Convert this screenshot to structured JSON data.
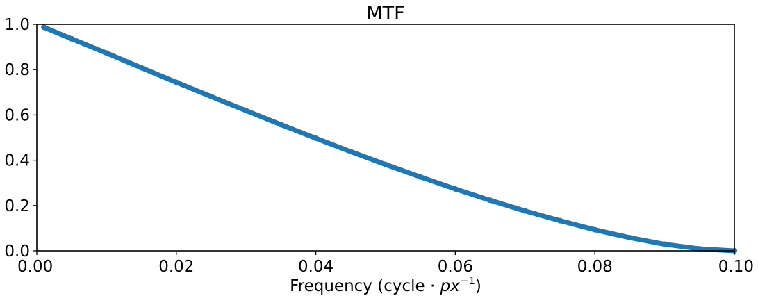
{
  "chart_data": {
    "type": "scatter",
    "title": "MTF",
    "xlabel": {
      "prefix": "Frequency (cycle · ",
      "italic": "px",
      "superscript": "−1",
      "suffix": ")"
    },
    "ylabel": "",
    "xlim": [
      0.0,
      0.1
    ],
    "ylim": [
      0.0,
      1.0
    ],
    "x_ticks": [
      0.0,
      0.02,
      0.04,
      0.06,
      0.08,
      0.1
    ],
    "x_tick_labels": [
      "0.00",
      "0.02",
      "0.04",
      "0.06",
      "0.08",
      "0.10"
    ],
    "y_ticks": [
      0.0,
      0.2,
      0.4,
      0.6,
      0.8,
      1.0
    ],
    "y_tick_labels": [
      "0.0",
      "0.2",
      "0.4",
      "0.6",
      "0.8",
      "1.0"
    ],
    "grid": false,
    "legend": "none",
    "series": [
      {
        "color": "#1f77b4",
        "x": [
          0.001,
          0.005,
          0.01,
          0.015,
          0.02,
          0.025,
          0.03,
          0.035,
          0.04,
          0.045,
          0.05,
          0.055,
          0.06,
          0.065,
          0.07,
          0.075,
          0.08,
          0.085,
          0.09,
          0.095,
          0.1
        ],
        "y": [
          0.987,
          0.936,
          0.873,
          0.808,
          0.744,
          0.681,
          0.619,
          0.557,
          0.497,
          0.438,
          0.381,
          0.326,
          0.273,
          0.223,
          0.176,
          0.133,
          0.093,
          0.058,
          0.029,
          0.009,
          0.0
        ]
      }
    ]
  }
}
